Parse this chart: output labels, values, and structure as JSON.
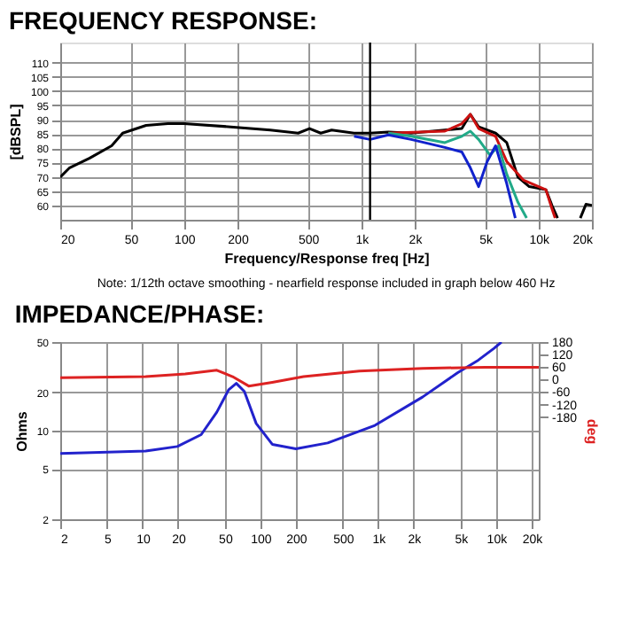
{
  "chart_data": [
    {
      "type": "line",
      "title": "FREQUENCY RESPONSE:",
      "xlabel": "Frequency/Response freq [Hz]",
      "ylabel": "[dBSPL]",
      "log": "x",
      "xlim": [
        20,
        20000
      ],
      "xticks": [
        20,
        50,
        100,
        200,
        500,
        {
          "value": 1000,
          "label": "1k"
        },
        {
          "value": 2000,
          "label": "2k"
        },
        {
          "value": 5000,
          "label": "5k"
        },
        {
          "value": 10000,
          "label": "10k"
        },
        {
          "value": 20000,
          "label": "20k"
        }
      ],
      "ylim": [
        55,
        117
      ],
      "yticks": [
        60,
        65,
        70,
        75,
        80,
        85,
        90,
        95,
        100,
        105,
        110
      ],
      "grid": true,
      "ref_lines": [
        {
          "axis": "x",
          "value": 1120,
          "color": "#000000"
        }
      ],
      "annotations": [
        "Note: 1/12th octave smoothing - nearfield response included in graph below 460 Hz"
      ],
      "series": [
        {
          "color": "#000000",
          "x": [
            20,
            22.6,
            29.2,
            39,
            45,
            61,
            81,
            100,
            183,
            306,
            440,
            510,
            590,
            680,
            910,
            1120,
            1420,
            1910,
            2960,
            3690,
            4120,
            4590,
            5720,
            6610,
            7650,
            8860,
            11000,
            11900,
            12800,
            15000,
            17200,
            18500,
            20000
          ],
          "values": [
            69.9,
            73.2,
            76.5,
            80.9,
            85.3,
            88,
            88.6,
            88.6,
            87.5,
            86.4,
            85.3,
            86.9,
            85.3,
            86.4,
            85.3,
            85.3,
            85.7,
            85.3,
            86.4,
            86.9,
            91.9,
            87.5,
            85.3,
            82,
            69.9,
            66.6,
            65.5,
            60,
            55.6,
            null,
            55.6,
            60.4,
            60
          ]
        },
        {
          "color": "#cc1111",
          "x": [
            1420,
            2960,
            3690,
            4120,
            4590,
            5720,
            6610,
            8240,
            11000,
            11900,
            12400
          ],
          "values": [
            85.3,
            86,
            88.6,
            91.9,
            86.9,
            84.2,
            75.4,
            68.8,
            65.5,
            58.9,
            55.6
          ]
        },
        {
          "color": "#22aa88",
          "x": [
            1420,
            1910,
            2960,
            3690,
            4120,
            4590,
            5320,
            5950,
            6610,
            7650,
            8560
          ],
          "values": [
            85.3,
            84.2,
            82,
            84.2,
            86,
            83.1,
            77.6,
            80.9,
            71,
            61.1,
            55.6
          ]
        },
        {
          "color": "#1122cc",
          "x": [
            910,
            1120,
            1420,
            1910,
            2960,
            3690,
            4120,
            4590,
            5130,
            5720,
            6610,
            7390
          ],
          "values": [
            84.2,
            83.1,
            84.7,
            83.1,
            80.3,
            78.7,
            73.2,
            66.6,
            75.4,
            80.9,
            67.7,
            55.6
          ]
        }
      ]
    },
    {
      "type": "line",
      "title": "IMPEDANCE/PHASE:",
      "ylabel": "Ohms",
      "y2label": "deg",
      "log": "xy",
      "xlim": [
        2,
        23000
      ],
      "xticks": [
        2,
        5,
        10,
        20,
        50,
        100,
        200,
        500,
        {
          "value": 1000,
          "label": "1k"
        },
        {
          "value": 2000,
          "label": "2k"
        },
        {
          "value": 5000,
          "label": "5k"
        },
        {
          "value": 10000,
          "label": "10k"
        },
        {
          "value": 20000,
          "label": "20k"
        }
      ],
      "ylim": [
        2,
        50
      ],
      "yticks": [
        2,
        5,
        10,
        20,
        50
      ],
      "y2lim": [
        -670,
        180
      ],
      "y2ticks": [
        -180,
        -120,
        -60,
        0,
        60,
        120,
        180
      ],
      "grid": true,
      "series": [
        {
          "color": "#2222cc",
          "x": [
            2,
            10.6,
            19.7,
            31.4,
            42.6,
            53.7,
            62.4,
            73,
            92,
            126,
            200,
            372,
            936,
            2370,
            4700,
            7060,
            9590,
            11100
          ],
          "values": [
            6.6,
            6.9,
            7.5,
            9.3,
            14,
            21,
            23.6,
            20.4,
            11.4,
            7.8,
            7.2,
            8.0,
            11,
            18.4,
            28.6,
            36,
            44.6,
            50
          ]
        },
        {
          "color": "#dd2222",
          "axis": "y2",
          "x": [
            2,
            10.6,
            23,
            42.6,
            58,
            79.5,
            126,
            232,
            690,
            2370,
            8060,
            23000
          ],
          "values": [
            9,
            14,
            27,
            45,
            14,
            -31,
            -13,
            14,
            41,
            54,
            59,
            59
          ]
        }
      ]
    }
  ]
}
